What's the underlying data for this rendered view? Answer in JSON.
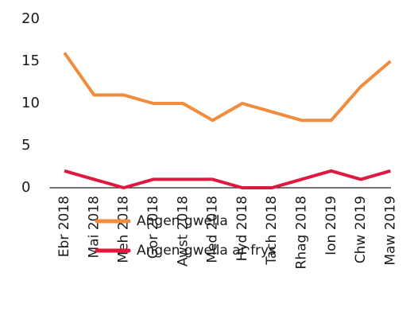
{
  "chart_data": {
    "type": "line",
    "categories": [
      "Ebr 2018",
      "Mai 2018",
      "Meh 2018",
      "Gor 2018",
      "Awst 2018",
      "Med 2018",
      "Hyd 2018",
      "Tach 2018",
      "Rhag 2018",
      "Ion 2019",
      "Chw 2019",
      "Maw 2019"
    ],
    "series": [
      {
        "name": "Angen gwella",
        "color": "#f28c3c",
        "values": [
          16,
          11,
          11,
          10,
          10,
          8,
          10,
          9,
          8,
          8,
          12,
          15
        ]
      },
      {
        "name": "Angen gwella ar frys",
        "color": "#e0173f",
        "values": [
          2,
          1,
          0,
          1,
          1,
          1,
          0,
          0,
          1,
          2,
          1,
          2
        ]
      }
    ],
    "ylim": [
      0,
      20
    ],
    "yticks": [
      0,
      5,
      10,
      15,
      20
    ],
    "grid": false
  }
}
